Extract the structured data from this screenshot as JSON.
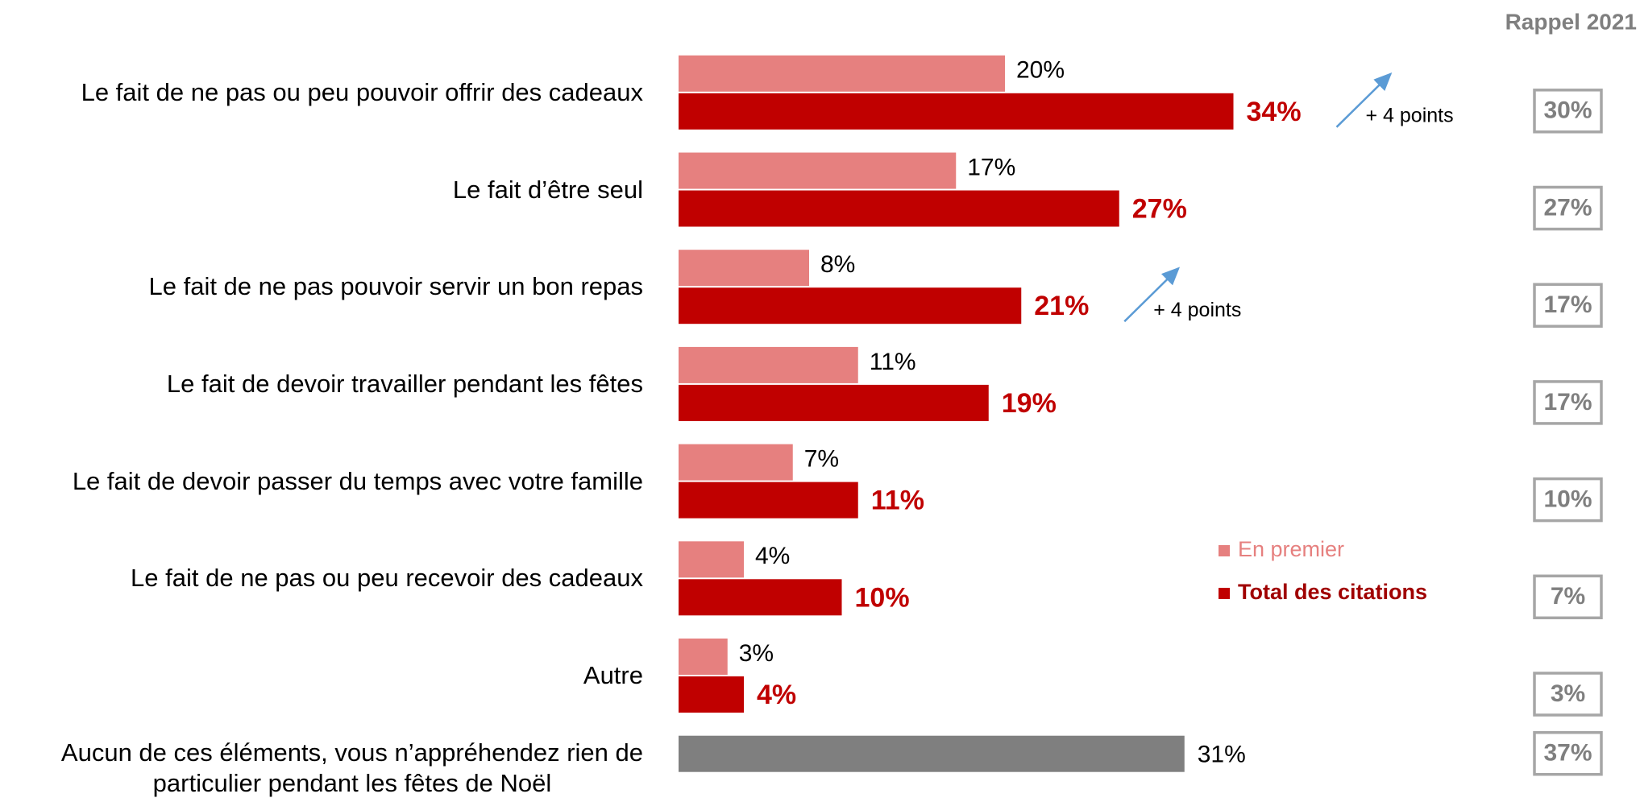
{
  "chart_data": {
    "type": "bar",
    "orientation": "horizontal",
    "categories": [
      "Le fait de ne pas ou peu pouvoir offrir des cadeaux",
      "Le fait d’être seul",
      "Le fait de ne pas pouvoir servir un bon repas",
      "Le fait de devoir travailler pendant les fêtes",
      "Le fait de devoir passer du temps avec votre famille",
      "Le fait de ne pas ou peu recevoir des cadeaux",
      "Autre",
      "Aucun de ces éléments, vous n’appréhendez rien de\nparticulier pendant les fêtes de Noël"
    ],
    "series": [
      {
        "name": "En premier",
        "color": "#e6807f",
        "values": [
          20,
          17,
          8,
          11,
          7,
          4,
          3,
          null
        ],
        "value_labels": [
          "20%",
          "17%",
          "8%",
          "11%",
          "7%",
          "4%",
          "3%",
          null
        ]
      },
      {
        "name": "Total des citations",
        "color": "#c00000",
        "colors": [
          "#c00000",
          "#c00000",
          "#c00000",
          "#c00000",
          "#c00000",
          "#c00000",
          "#c00000",
          "#7f7f7f"
        ],
        "values": [
          34,
          27,
          21,
          19,
          11,
          10,
          4,
          31
        ],
        "value_labels": [
          "34%",
          "27%",
          "21%",
          "19%",
          "11%",
          "10%",
          "4%",
          "31%"
        ]
      }
    ],
    "annotations": [
      "+ 4 points",
      null,
      "+ 4 points",
      null,
      null,
      null,
      null,
      null
    ],
    "reference": {
      "title": "Rappel 2021",
      "values": [
        30,
        27,
        17,
        17,
        10,
        7,
        3,
        37
      ],
      "value_labels": [
        "30%",
        "27%",
        "17%",
        "17%",
        "10%",
        "7%",
        "3%",
        "37%"
      ]
    }
  }
}
